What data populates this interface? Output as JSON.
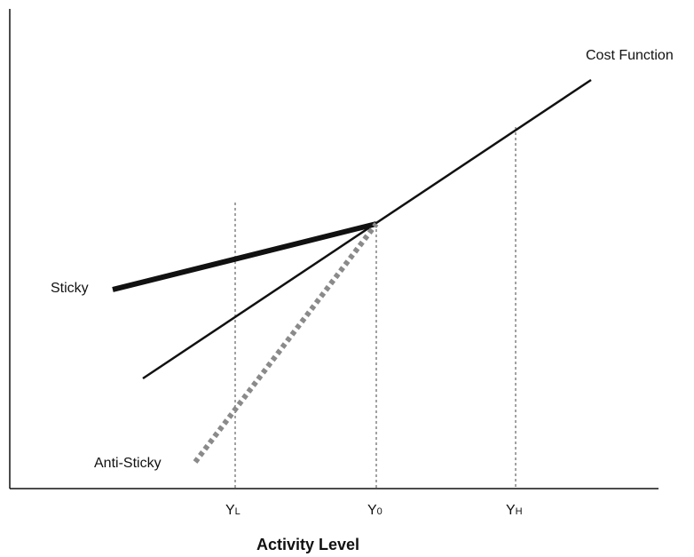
{
  "chart_data": {
    "type": "line",
    "xlabel": "Activity Level",
    "ylabel": "",
    "x_ticks": [
      {
        "main": "Y",
        "sub": "L"
      },
      {
        "main": "Y",
        "sub": "0"
      },
      {
        "main": "Y",
        "sub": "H"
      }
    ],
    "series": [
      {
        "name": "Cost Function",
        "style": "thin-solid",
        "color": "#111111"
      },
      {
        "name": "Sticky",
        "style": "thick-solid",
        "color": "#111111"
      },
      {
        "name": "Anti-Sticky",
        "style": "dotted",
        "color": "#8a8a8a"
      }
    ]
  }
}
